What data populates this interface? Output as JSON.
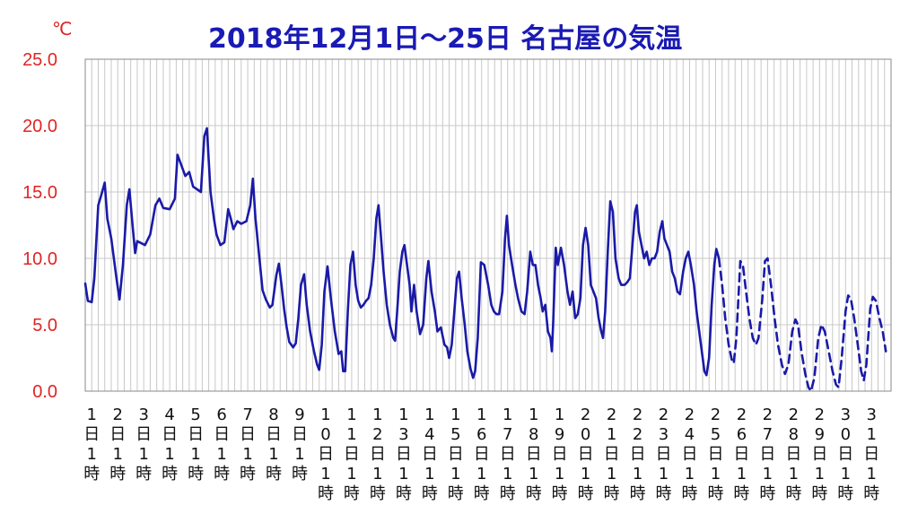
{
  "title": "2018年12月1日～25日 名古屋の気温",
  "unit": "℃",
  "colors": {
    "line": "#1a1aa8",
    "title": "#1a1ab4",
    "ytick": "#e02424",
    "grid": "#c8c8c8",
    "axis": "#888888"
  },
  "chart_data": {
    "type": "line",
    "title": "2018年12月1日～25日 名古屋の気温",
    "xlabel": "",
    "ylabel": "℃",
    "ylim": [
      0,
      25
    ],
    "yticks": [
      "0.0",
      "5.0",
      "10.0",
      "15.0",
      "20.0",
      "25.0"
    ],
    "x_categories": [
      "1日1時",
      "2日1時",
      "3日1時",
      "4日1時",
      "5日1時",
      "6日1時",
      "7日1時",
      "8日1時",
      "9日1時",
      "10日1時",
      "11日1時",
      "12日1時",
      "13日1時",
      "14日1時",
      "15日1時",
      "16日1時",
      "17日1時",
      "18日1時",
      "19日1時",
      "20日1時",
      "21日1時",
      "22日1時",
      "23日1時",
      "24日1時",
      "25日1時",
      "26日1時",
      "27日1時",
      "28日1時",
      "29日1時",
      "30日1時",
      "31日1時"
    ],
    "grid": true,
    "series": [
      {
        "style": "solid",
        "x_unit": "day",
        "points": [
          [
            1.0,
            8.1
          ],
          [
            1.1,
            6.8
          ],
          [
            1.25,
            6.7
          ],
          [
            1.35,
            8.5
          ],
          [
            1.5,
            14.0
          ],
          [
            1.62,
            14.8
          ],
          [
            1.75,
            15.7
          ],
          [
            1.85,
            13.0
          ],
          [
            2.0,
            11.5
          ],
          [
            2.2,
            8.5
          ],
          [
            2.32,
            6.9
          ],
          [
            2.45,
            9.5
          ],
          [
            2.6,
            14.0
          ],
          [
            2.7,
            15.2
          ],
          [
            2.82,
            12.5
          ],
          [
            2.92,
            10.4
          ],
          [
            3.0,
            11.3
          ],
          [
            3.3,
            11.0
          ],
          [
            3.5,
            11.8
          ],
          [
            3.7,
            14.0
          ],
          [
            3.85,
            14.5
          ],
          [
            4.0,
            13.8
          ],
          [
            4.25,
            13.7
          ],
          [
            4.45,
            14.5
          ],
          [
            4.55,
            17.8
          ],
          [
            4.7,
            17.0
          ],
          [
            4.85,
            16.2
          ],
          [
            5.0,
            16.5
          ],
          [
            5.15,
            15.4
          ],
          [
            5.3,
            15.2
          ],
          [
            5.45,
            15.0
          ],
          [
            5.58,
            19.2
          ],
          [
            5.68,
            19.8
          ],
          [
            5.82,
            15.0
          ],
          [
            5.95,
            13.0
          ],
          [
            6.05,
            11.8
          ],
          [
            6.2,
            11.0
          ],
          [
            6.35,
            11.2
          ],
          [
            6.5,
            13.7
          ],
          [
            6.6,
            13.0
          ],
          [
            6.7,
            12.2
          ],
          [
            6.85,
            12.8
          ],
          [
            7.0,
            12.6
          ],
          [
            7.2,
            12.8
          ],
          [
            7.35,
            14.0
          ],
          [
            7.45,
            16.0
          ],
          [
            7.55,
            13.0
          ],
          [
            7.7,
            10.0
          ],
          [
            7.82,
            7.6
          ],
          [
            7.95,
            6.9
          ],
          [
            8.1,
            6.3
          ],
          [
            8.2,
            6.5
          ],
          [
            8.35,
            8.7
          ],
          [
            8.45,
            9.6
          ],
          [
            8.55,
            8.0
          ],
          [
            8.65,
            6.2
          ],
          [
            8.75,
            4.8
          ],
          [
            8.85,
            3.7
          ],
          [
            9.0,
            3.3
          ],
          [
            9.1,
            3.6
          ],
          [
            9.2,
            5.5
          ],
          [
            9.3,
            8.0
          ],
          [
            9.42,
            8.8
          ],
          [
            9.52,
            6.5
          ],
          [
            9.65,
            4.5
          ],
          [
            9.8,
            3.0
          ],
          [
            9.92,
            2.0
          ],
          [
            10.0,
            1.6
          ],
          [
            10.1,
            3.5
          ],
          [
            10.2,
            7.5
          ],
          [
            10.32,
            9.4
          ],
          [
            10.45,
            7.0
          ],
          [
            10.6,
            4.5
          ],
          [
            10.75,
            2.8
          ],
          [
            10.85,
            3.0
          ],
          [
            10.92,
            1.5
          ],
          [
            11.0,
            1.5
          ],
          [
            11.1,
            6.0
          ],
          [
            11.2,
            9.5
          ],
          [
            11.3,
            10.5
          ],
          [
            11.4,
            8.0
          ],
          [
            11.5,
            6.8
          ],
          [
            11.6,
            6.3
          ],
          [
            11.7,
            6.5
          ],
          [
            11.8,
            6.8
          ],
          [
            11.9,
            7.0
          ],
          [
            12.0,
            8.0
          ],
          [
            12.1,
            10.0
          ],
          [
            12.2,
            13.0
          ],
          [
            12.28,
            14.0
          ],
          [
            12.38,
            11.5
          ],
          [
            12.48,
            9.0
          ],
          [
            12.6,
            6.5
          ],
          [
            12.72,
            5.0
          ],
          [
            12.85,
            4.0
          ],
          [
            12.92,
            3.8
          ],
          [
            13.0,
            6.0
          ],
          [
            13.1,
            9.0
          ],
          [
            13.2,
            10.5
          ],
          [
            13.28,
            11.0
          ],
          [
            13.38,
            9.5
          ],
          [
            13.48,
            8.0
          ],
          [
            13.55,
            6.0
          ],
          [
            13.65,
            8.0
          ],
          [
            13.75,
            6.0
          ],
          [
            13.88,
            4.3
          ],
          [
            14.0,
            5.0
          ],
          [
            14.12,
            8.5
          ],
          [
            14.2,
            9.8
          ],
          [
            14.32,
            7.5
          ],
          [
            14.45,
            6.0
          ],
          [
            14.55,
            4.5
          ],
          [
            14.68,
            4.8
          ],
          [
            14.82,
            3.5
          ],
          [
            14.92,
            3.3
          ],
          [
            15.0,
            2.5
          ],
          [
            15.1,
            3.5
          ],
          [
            15.2,
            6.0
          ],
          [
            15.3,
            8.5
          ],
          [
            15.38,
            9.0
          ],
          [
            15.48,
            7.0
          ],
          [
            15.6,
            5.0
          ],
          [
            15.7,
            3.0
          ],
          [
            15.82,
            1.7
          ],
          [
            15.92,
            1.0
          ],
          [
            16.0,
            1.5
          ],
          [
            16.1,
            4.0
          ],
          [
            16.22,
            9.7
          ],
          [
            16.35,
            9.5
          ],
          [
            16.5,
            8.0
          ],
          [
            16.62,
            6.5
          ],
          [
            16.72,
            6.0
          ],
          [
            16.82,
            5.8
          ],
          [
            16.92,
            5.8
          ],
          [
            17.05,
            7.5
          ],
          [
            17.15,
            11.5
          ],
          [
            17.22,
            13.2
          ],
          [
            17.3,
            11.0
          ],
          [
            17.42,
            9.5
          ],
          [
            17.55,
            8.0
          ],
          [
            17.65,
            7.0
          ],
          [
            17.78,
            6.0
          ],
          [
            17.9,
            5.8
          ],
          [
            18.0,
            7.5
          ],
          [
            18.12,
            10.5
          ],
          [
            18.22,
            9.5
          ],
          [
            18.32,
            9.5
          ],
          [
            18.42,
            8.0
          ],
          [
            18.52,
            7.0
          ],
          [
            18.6,
            6.0
          ],
          [
            18.7,
            6.5
          ],
          [
            18.8,
            4.5
          ],
          [
            18.9,
            4.0
          ],
          [
            18.95,
            3.0
          ],
          [
            19.0,
            5.0
          ],
          [
            19.1,
            10.8
          ],
          [
            19.18,
            9.5
          ],
          [
            19.3,
            10.8
          ],
          [
            19.42,
            9.5
          ],
          [
            19.55,
            7.5
          ],
          [
            19.65,
            6.5
          ],
          [
            19.75,
            7.5
          ],
          [
            19.85,
            5.5
          ],
          [
            19.95,
            5.8
          ],
          [
            20.05,
            7.0
          ],
          [
            20.15,
            11.0
          ],
          [
            20.25,
            12.3
          ],
          [
            20.35,
            11.0
          ],
          [
            20.45,
            8.0
          ],
          [
            20.55,
            7.5
          ],
          [
            20.65,
            7.0
          ],
          [
            20.75,
            5.5
          ],
          [
            20.85,
            4.5
          ],
          [
            20.92,
            4.0
          ],
          [
            21.0,
            6.0
          ],
          [
            21.1,
            10.5
          ],
          [
            21.2,
            14.3
          ],
          [
            21.3,
            13.5
          ],
          [
            21.4,
            10.0
          ],
          [
            21.52,
            8.5
          ],
          [
            21.62,
            8.0
          ],
          [
            21.75,
            8.0
          ],
          [
            21.85,
            8.2
          ],
          [
            21.95,
            8.5
          ],
          [
            22.05,
            11.0
          ],
          [
            22.15,
            13.5
          ],
          [
            22.22,
            14.0
          ],
          [
            22.3,
            12.0
          ],
          [
            22.4,
            11.0
          ],
          [
            22.5,
            10.0
          ],
          [
            22.6,
            10.5
          ],
          [
            22.7,
            9.5
          ],
          [
            22.8,
            10.0
          ],
          [
            22.9,
            10.0
          ],
          [
            23.0,
            10.5
          ],
          [
            23.1,
            12.0
          ],
          [
            23.2,
            12.8
          ],
          [
            23.28,
            11.5
          ],
          [
            23.38,
            11.0
          ],
          [
            23.48,
            10.5
          ],
          [
            23.58,
            9.0
          ],
          [
            23.68,
            8.5
          ],
          [
            23.78,
            7.5
          ],
          [
            23.88,
            7.3
          ],
          [
            24.0,
            9.0
          ],
          [
            24.1,
            10.0
          ],
          [
            24.2,
            10.5
          ],
          [
            24.3,
            9.5
          ],
          [
            24.42,
            8.0
          ],
          [
            24.52,
            6.0
          ],
          [
            24.62,
            4.5
          ],
          [
            24.72,
            3.0
          ],
          [
            24.82,
            1.5
          ],
          [
            24.9,
            1.2
          ],
          [
            25.0,
            2.5
          ],
          [
            25.1,
            6.5
          ],
          [
            25.2,
            9.5
          ],
          [
            25.28,
            10.7
          ],
          [
            25.38,
            10.0
          ]
        ]
      },
      {
        "style": "dashed",
        "x_unit": "day",
        "points": [
          [
            25.38,
            10.0
          ],
          [
            25.5,
            8.0
          ],
          [
            25.62,
            5.5
          ],
          [
            25.75,
            3.5
          ],
          [
            25.88,
            2.3
          ],
          [
            25.95,
            2.1
          ],
          [
            26.05,
            4.0
          ],
          [
            26.2,
            9.8
          ],
          [
            26.3,
            9.5
          ],
          [
            26.42,
            7.5
          ],
          [
            26.55,
            5.5
          ],
          [
            26.68,
            4.0
          ],
          [
            26.8,
            3.5
          ],
          [
            26.9,
            4.0
          ],
          [
            27.05,
            7.0
          ],
          [
            27.15,
            9.8
          ],
          [
            27.25,
            10.0
          ],
          [
            27.38,
            8.0
          ],
          [
            27.52,
            5.5
          ],
          [
            27.65,
            3.5
          ],
          [
            27.8,
            2.0
          ],
          [
            27.92,
            1.3
          ],
          [
            28.05,
            2.0
          ],
          [
            28.2,
            4.5
          ],
          [
            28.32,
            5.4
          ],
          [
            28.42,
            5.0
          ],
          [
            28.55,
            3.0
          ],
          [
            28.7,
            1.3
          ],
          [
            28.82,
            0.3
          ],
          [
            28.92,
            0.0
          ],
          [
            29.05,
            1.0
          ],
          [
            29.2,
            4.0
          ],
          [
            29.32,
            5.0
          ],
          [
            29.45,
            4.5
          ],
          [
            29.6,
            3.0
          ],
          [
            29.75,
            1.5
          ],
          [
            29.88,
            0.5
          ],
          [
            29.98,
            0.3
          ],
          [
            30.1,
            2.5
          ],
          [
            30.25,
            6.0
          ],
          [
            30.35,
            7.2
          ],
          [
            30.45,
            7.0
          ],
          [
            30.58,
            5.5
          ],
          [
            30.72,
            3.5
          ],
          [
            30.85,
            1.5
          ],
          [
            30.95,
            0.8
          ],
          [
            31.05,
            2.0
          ],
          [
            31.2,
            6.2
          ],
          [
            31.3,
            7.1
          ],
          [
            31.42,
            6.8
          ],
          [
            31.55,
            5.5
          ],
          [
            31.68,
            4.5
          ],
          [
            31.8,
            3.0
          ]
        ]
      }
    ]
  }
}
